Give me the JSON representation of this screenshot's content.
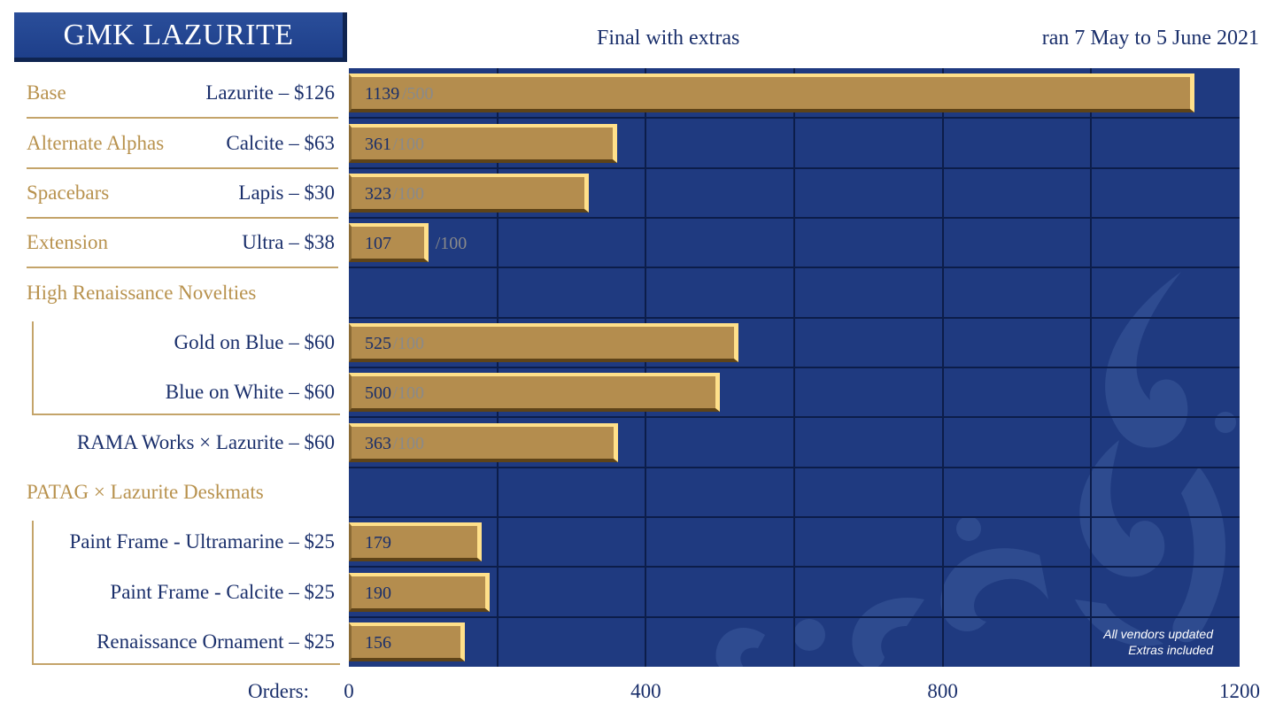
{
  "header": {
    "title": "GMK LAZURITE",
    "subtitle": "Final with extras",
    "dates": "ran 7 May to 5 June 2021"
  },
  "note": {
    "line1": "All vendors updated",
    "line2": "Extras included"
  },
  "colors": {
    "plot_bg": "#1f3a80",
    "bar": "#b48d4e",
    "bar_highlight": "#ffe08a",
    "category_text": "#b8924e",
    "item_text": "#1a2f6b"
  },
  "chart_data": {
    "type": "bar",
    "orientation": "horizontal",
    "xlabel": "Orders:",
    "xlim": [
      0,
      1200
    ],
    "xticks": [
      "0",
      "400",
      "800",
      "1200"
    ],
    "grid": true,
    "rows": [
      {
        "category": "Base",
        "item": "Lazurite – $126",
        "value": 1139,
        "target": "/500"
      },
      {
        "category": "Alternate Alphas",
        "item": "Calcite – $63",
        "value": 361,
        "target": "/100"
      },
      {
        "category": "Spacebars",
        "item": "Lapis – $30",
        "value": 323,
        "target": "/100"
      },
      {
        "category": "Extension",
        "item": "Ultra – $38",
        "value": 107,
        "target": "/100"
      },
      {
        "category": "High Renaissance Novelties",
        "item": "",
        "value": null,
        "target": ""
      },
      {
        "category": "",
        "item": "Gold on Blue – $60",
        "value": 525,
        "target": "/100"
      },
      {
        "category": "",
        "item": "Blue on White – $60",
        "value": 500,
        "target": "/100"
      },
      {
        "category": "",
        "item": "RAMA Works × Lazurite – $60",
        "value": 363,
        "target": "/100"
      },
      {
        "category": "PATAG × Lazurite Deskmats",
        "item": "",
        "value": null,
        "target": ""
      },
      {
        "category": "",
        "item": "Paint Frame - Ultramarine – $25",
        "value": 179,
        "target": ""
      },
      {
        "category": "",
        "item": "Paint Frame - Calcite – $25",
        "value": 190,
        "target": ""
      },
      {
        "category": "",
        "item": "Renaissance Ornament – $25",
        "value": 156,
        "target": ""
      }
    ]
  }
}
